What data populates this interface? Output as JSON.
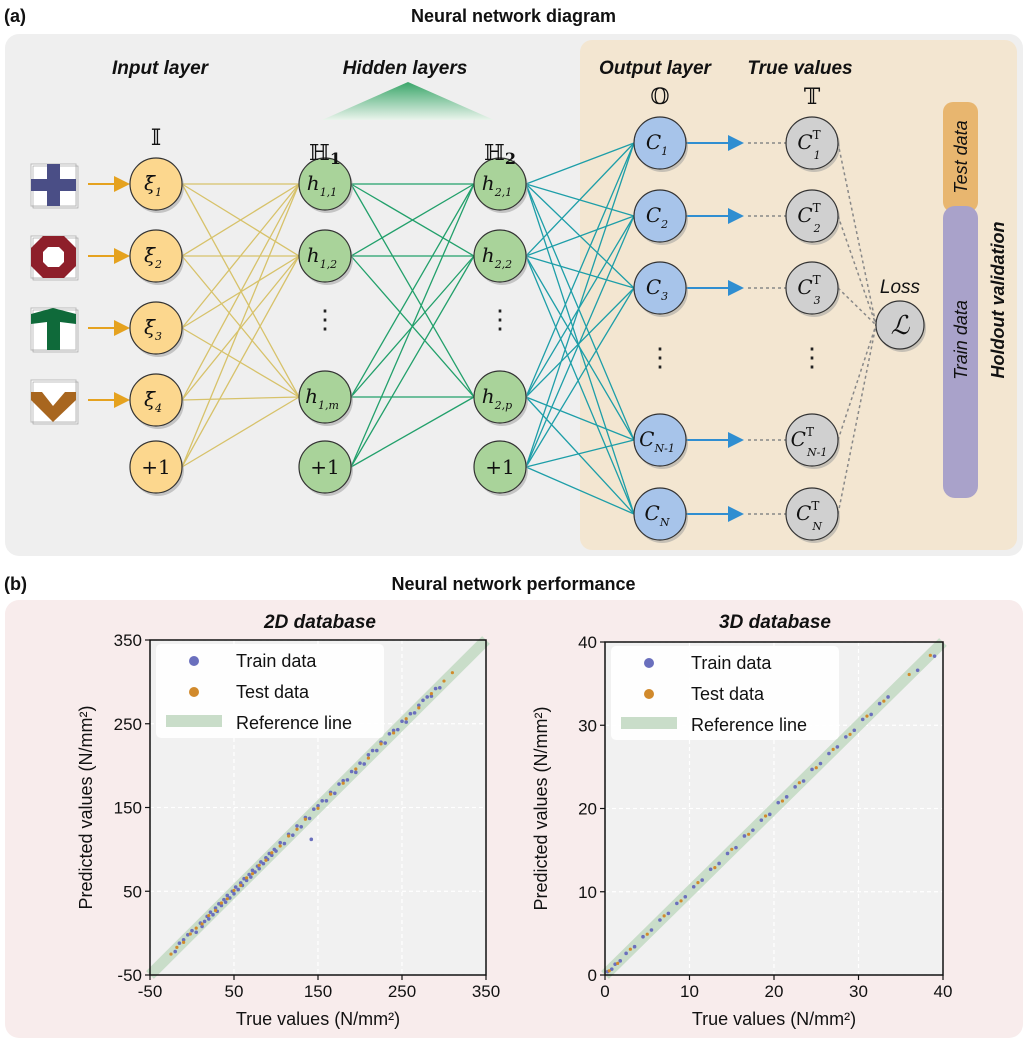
{
  "panel_a": {
    "label": "(a)",
    "title": "Neural network diagram",
    "layer_titles": {
      "input": "Input layer",
      "hidden": "Hidden layers",
      "output": "Output layer",
      "true": "True values"
    },
    "layer_symbols": {
      "input": "𝕀",
      "hidden1": "ℍ",
      "hidden1_sub": "1",
      "hidden2": "ℍ",
      "hidden2_sub": "2",
      "output": "𝕆",
      "true": "𝕋"
    },
    "input_nodes": [
      {
        "main": "ξ̄",
        "sub": "1"
      },
      {
        "main": "ξ̄",
        "sub": "2"
      },
      {
        "main": "ξ̄",
        "sub": "3"
      },
      {
        "main": "ξ̄",
        "sub": "4"
      },
      {
        "main": "+1",
        "sub": ""
      }
    ],
    "hidden1_nodes": [
      {
        "main": "h",
        "sub": "1,1"
      },
      {
        "main": "h",
        "sub": "1,2"
      },
      {
        "main": "h",
        "sub": "1,m"
      },
      {
        "main": "+1",
        "sub": ""
      }
    ],
    "hidden2_nodes": [
      {
        "main": "h",
        "sub": "2,1"
      },
      {
        "main": "h",
        "sub": "2,2"
      },
      {
        "main": "h",
        "sub": "2,p"
      },
      {
        "main": "+1",
        "sub": ""
      }
    ],
    "output_nodes": [
      {
        "main": "C",
        "sub": "1"
      },
      {
        "main": "C",
        "sub": "2"
      },
      {
        "main": "C",
        "sub": "3"
      },
      {
        "main": "C",
        "sub": "N-1"
      },
      {
        "main": "C",
        "sub": "N"
      }
    ],
    "true_nodes": [
      {
        "main": "C",
        "sup": "T",
        "sub": "1"
      },
      {
        "main": "C",
        "sup": "T",
        "sub": "2"
      },
      {
        "main": "C",
        "sup": "T",
        "sub": "3"
      },
      {
        "main": "C",
        "sup": "T",
        "sub": "N-1"
      },
      {
        "main": "C",
        "sup": "T",
        "sub": "N"
      }
    ],
    "ellipsis": "⋮",
    "loss_label": "Loss",
    "loss_symbol": "ℒ",
    "holdout": {
      "test": "Test data",
      "train": "Train data",
      "label": "Holdout validation"
    },
    "colors": {
      "panel_bg": "#efefef",
      "output_bg": "#f3e6d1",
      "input_node": "#fcd78e",
      "hidden_node": "#a9d39a",
      "output_node": "#a7c4ea",
      "true_node": "#d0d0d0",
      "test_bar": "#e8b66f",
      "train_bar": "#a9a2ca",
      "arrow_input": "#e5a21f",
      "arrow_output": "#2f8ed1"
    }
  },
  "panel_b": {
    "label": "(b)",
    "title": "Neural network performance",
    "colors": {
      "bg": "#f8ecec",
      "train": "#6a6fbd",
      "test": "#d18a2c",
      "reference": "#c9ddc9"
    }
  },
  "chart_data": [
    {
      "type": "scatter",
      "title": "2D database",
      "xlabel": "True values (N/mm²)",
      "ylabel": "Predicted values (N/mm²)",
      "xlim": [
        -50,
        350
      ],
      "ylim": [
        -50,
        350
      ],
      "xticks": [
        -50,
        50,
        150,
        250,
        350
      ],
      "yticks": [
        -50,
        50,
        150,
        250,
        350
      ],
      "grid": true,
      "legend_position": "top-left",
      "legend": [
        "Train data",
        "Test data",
        "Reference line"
      ],
      "series": [
        {
          "name": "Train data",
          "points": [
            [
              -20,
              -22
            ],
            [
              -15,
              -12
            ],
            [
              -10,
              -8
            ],
            [
              -5,
              -2
            ],
            [
              0,
              3
            ],
            [
              5,
              1
            ],
            [
              10,
              12
            ],
            [
              12,
              8
            ],
            [
              15,
              14
            ],
            [
              18,
              20
            ],
            [
              20,
              17
            ],
            [
              22,
              25
            ],
            [
              25,
              22
            ],
            [
              28,
              30
            ],
            [
              30,
              26
            ],
            [
              32,
              35
            ],
            [
              35,
              33
            ],
            [
              38,
              40
            ],
            [
              40,
              37
            ],
            [
              42,
              45
            ],
            [
              45,
              42
            ],
            [
              48,
              50
            ],
            [
              50,
              47
            ],
            [
              52,
              55
            ],
            [
              55,
              52
            ],
            [
              58,
              60
            ],
            [
              60,
              57
            ],
            [
              62,
              65
            ],
            [
              65,
              63
            ],
            [
              68,
              70
            ],
            [
              70,
              67
            ],
            [
              72,
              75
            ],
            [
              75,
              73
            ],
            [
              78,
              80
            ],
            [
              80,
              77
            ],
            [
              82,
              85
            ],
            [
              85,
              83
            ],
            [
              88,
              90
            ],
            [
              90,
              88
            ],
            [
              92,
              95
            ],
            [
              95,
              93
            ],
            [
              98,
              100
            ],
            [
              100,
              98
            ],
            [
              105,
              108
            ],
            [
              110,
              107
            ],
            [
              115,
              118
            ],
            [
              120,
              117
            ],
            [
              125,
              128
            ],
            [
              130,
              127
            ],
            [
              135,
              138
            ],
            [
              140,
              137
            ],
            [
              145,
              148
            ],
            [
              142,
              112
            ],
            [
              150,
              152
            ],
            [
              155,
              158
            ],
            [
              160,
              158
            ],
            [
              165,
              168
            ],
            [
              170,
              167
            ],
            [
              175,
              178
            ],
            [
              180,
              182
            ],
            [
              185,
              183
            ],
            [
              190,
              193
            ],
            [
              195,
              192
            ],
            [
              200,
              203
            ],
            [
              205,
              202
            ],
            [
              210,
              213
            ],
            [
              215,
              218
            ],
            [
              220,
              218
            ],
            [
              225,
              228
            ],
            [
              230,
              227
            ],
            [
              235,
              238
            ],
            [
              240,
              242
            ],
            [
              245,
              243
            ],
            [
              250,
              253
            ],
            [
              255,
              252
            ],
            [
              260,
              262
            ],
            [
              265,
              263
            ],
            [
              270,
              272
            ],
            [
              275,
              278
            ],
            [
              280,
              282
            ],
            [
              285,
              283
            ],
            [
              290,
              292
            ],
            [
              295,
              293
            ]
          ]
        },
        {
          "name": "Test data",
          "points": [
            [
              -25,
              -25
            ],
            [
              -18,
              -17
            ],
            [
              -10,
              -11
            ],
            [
              -2,
              -1
            ],
            [
              5,
              6
            ],
            [
              12,
              11
            ],
            [
              20,
              21
            ],
            [
              28,
              27
            ],
            [
              35,
              36
            ],
            [
              42,
              41
            ],
            [
              50,
              51
            ],
            [
              58,
              57
            ],
            [
              65,
              66
            ],
            [
              72,
              71
            ],
            [
              80,
              81
            ],
            [
              88,
              87
            ],
            [
              95,
              96
            ],
            [
              105,
              104
            ],
            [
              115,
              116
            ],
            [
              125,
              124
            ],
            [
              135,
              136
            ],
            [
              150,
              149
            ],
            [
              165,
              166
            ],
            [
              180,
              179
            ],
            [
              195,
              196
            ],
            [
              210,
              209
            ],
            [
              225,
              226
            ],
            [
              240,
              239
            ],
            [
              255,
              256
            ],
            [
              270,
              269
            ],
            [
              285,
              286
            ],
            [
              300,
              301
            ],
            [
              310,
              311
            ]
          ]
        }
      ],
      "reference_line": [
        [
          -50,
          -50
        ],
        [
          350,
          350
        ]
      ]
    },
    {
      "type": "scatter",
      "title": "3D database",
      "xlabel": "True values (N/mm²)",
      "ylabel": "Predicted values (N/mm²)",
      "xlim": [
        0,
        40
      ],
      "ylim": [
        0,
        40
      ],
      "xticks": [
        0,
        10,
        20,
        30,
        40
      ],
      "yticks": [
        0,
        10,
        20,
        30,
        40
      ],
      "grid": true,
      "legend_position": "top-left",
      "legend": [
        "Train data",
        "Test data",
        "Reference line"
      ],
      "series": [
        {
          "name": "Train data",
          "points": [
            [
              0.3,
              0.4
            ],
            [
              0.8,
              0.7
            ],
            [
              1.2,
              1.3
            ],
            [
              1.8,
              1.7
            ],
            [
              2.5,
              2.6
            ],
            [
              3.5,
              3.4
            ],
            [
              4.5,
              4.6
            ],
            [
              5.5,
              5.4
            ],
            [
              6.5,
              6.6
            ],
            [
              7.5,
              7.4
            ],
            [
              8.5,
              8.6
            ],
            [
              9.5,
              9.4
            ],
            [
              10.5,
              10.6
            ],
            [
              11.5,
              11.4
            ],
            [
              12.5,
              12.7
            ],
            [
              13.5,
              13.4
            ],
            [
              14.5,
              14.6
            ],
            [
              15.5,
              15.3
            ],
            [
              16.5,
              16.7
            ],
            [
              17.5,
              17.4
            ],
            [
              18.5,
              18.6
            ],
            [
              19.5,
              19.3
            ],
            [
              20.5,
              20.7
            ],
            [
              21.5,
              21.4
            ],
            [
              22.5,
              22.6
            ],
            [
              23.5,
              23.3
            ],
            [
              24.5,
              24.7
            ],
            [
              25.5,
              25.4
            ],
            [
              26.5,
              26.6
            ],
            [
              27.5,
              27.4
            ],
            [
              28.5,
              28.6
            ],
            [
              29.5,
              29.4
            ],
            [
              30.5,
              30.7
            ],
            [
              31.5,
              31.3
            ],
            [
              32.5,
              32.6
            ],
            [
              33.5,
              33.4
            ],
            [
              37.0,
              36.6
            ],
            [
              39.0,
              38.3
            ]
          ]
        },
        {
          "name": "Test data",
          "points": [
            [
              0.5,
              0.5
            ],
            [
              1.5,
              1.4
            ],
            [
              3.0,
              3.1
            ],
            [
              5.0,
              4.9
            ],
            [
              7.0,
              7.1
            ],
            [
              9.0,
              8.9
            ],
            [
              11.0,
              11.1
            ],
            [
              13.0,
              12.9
            ],
            [
              15.0,
              15.1
            ],
            [
              17.0,
              16.9
            ],
            [
              19.0,
              19.1
            ],
            [
              21.0,
              20.9
            ],
            [
              23.0,
              23.1
            ],
            [
              25.0,
              24.9
            ],
            [
              27.0,
              27.1
            ],
            [
              29.0,
              28.9
            ],
            [
              31.0,
              31.1
            ],
            [
              33.0,
              32.9
            ],
            [
              36.0,
              36.1
            ],
            [
              38.5,
              38.4
            ]
          ]
        }
      ],
      "reference_line": [
        [
          0,
          0
        ],
        [
          40,
          40
        ]
      ]
    }
  ]
}
